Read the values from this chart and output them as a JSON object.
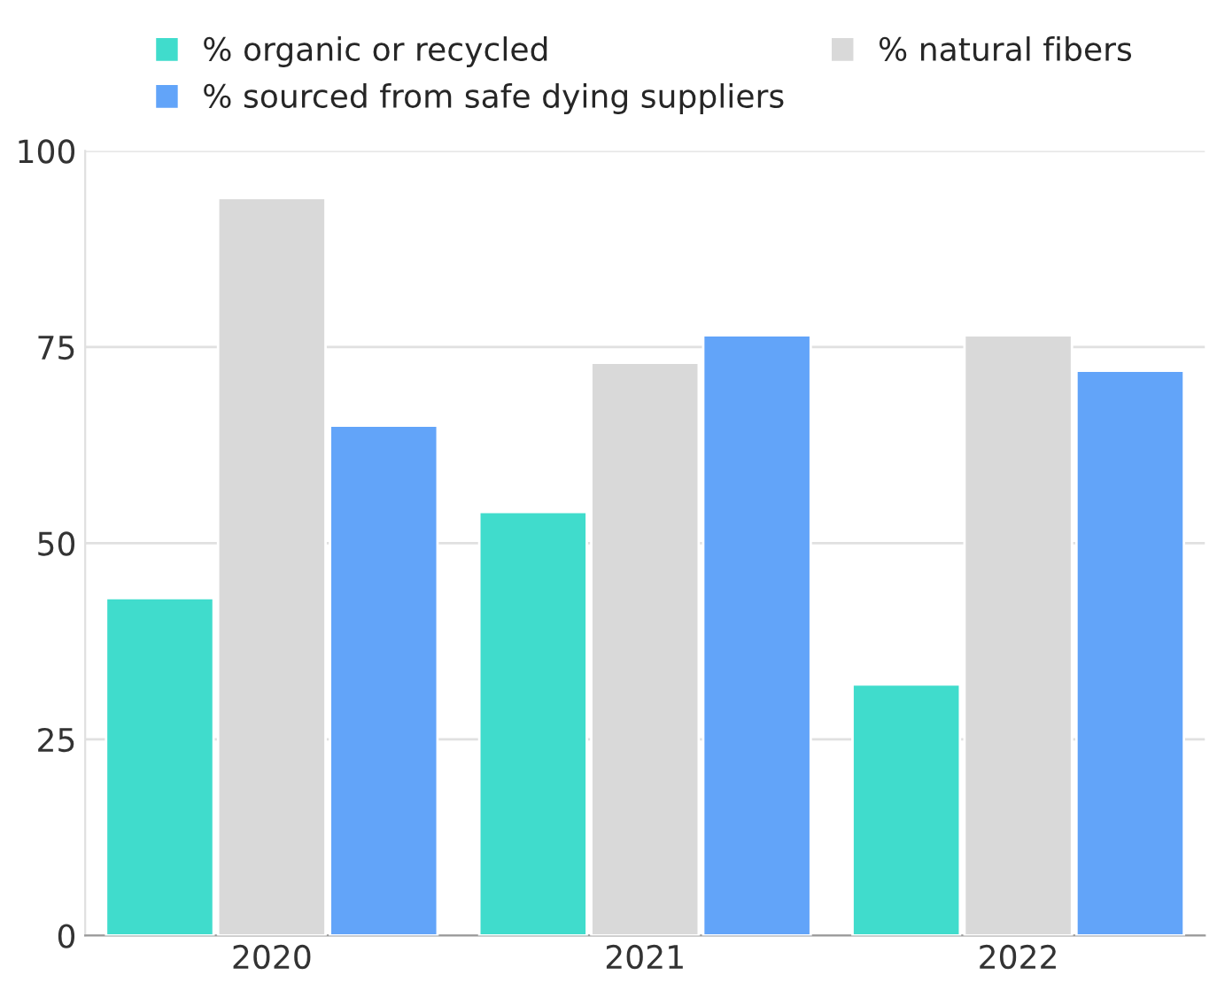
{
  "chart_data": {
    "type": "bar",
    "categories": [
      "2020",
      "2021",
      "2022"
    ],
    "series": [
      {
        "name": "% organic or recycled",
        "color": "#40dccc",
        "values": [
          43,
          54,
          32
        ]
      },
      {
        "name": "% natural fibers",
        "color": "#d9d9d9",
        "values": [
          94,
          73,
          76.5
        ]
      },
      {
        "name": "% sourced from safe dying suppliers",
        "color": "#62a4f9",
        "values": [
          65,
          76.5,
          72
        ]
      }
    ],
    "ylim": [
      0,
      100
    ],
    "yticks": [
      0,
      25,
      50,
      75,
      100
    ],
    "grid": "y",
    "legend": "top"
  }
}
